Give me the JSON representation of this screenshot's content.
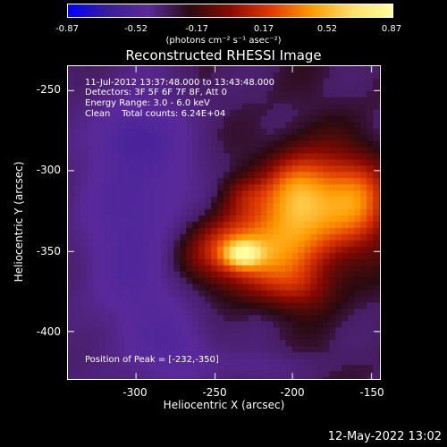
{
  "colorbar": {
    "ticks": [
      "-0.87",
      "-0.52",
      "-0.17",
      "0.17",
      "0.52",
      "0.87"
    ],
    "units": "(photons cm⁻² s⁻¹ asec⁻²)"
  },
  "title": "Reconstructed RHESSI Image",
  "info": {
    "line1": "11-Jul-2012 13:37:48.000 to 13:43:48.000",
    "line2": "Detectors: 3F 5F 6F 7F 8F, Att 0",
    "line3": "Energy Range: 3.0 - 6.0 keV",
    "line4": "Clean    Total counts: 6.24E+04"
  },
  "peak_text": "Position of Peak = [-232,-350]",
  "axes": {
    "xlabel": "Heliocentric X (arcsec)",
    "ylabel": "Heliocentric Y (arcsec)",
    "xticks": [
      "-300",
      "-250",
      "-200",
      "-150"
    ],
    "yticks": [
      "-250",
      "-300",
      "-350",
      "-400"
    ]
  },
  "footer": "12-May-2022 13:02",
  "colors": {
    "colormap": [
      "#0000ff",
      "#3a1d9a",
      "#5a2a9a",
      "#2a0a10",
      "#8a0a00",
      "#e03a00",
      "#ff9a00",
      "#ffe06a",
      "#ffffa0"
    ]
  }
}
